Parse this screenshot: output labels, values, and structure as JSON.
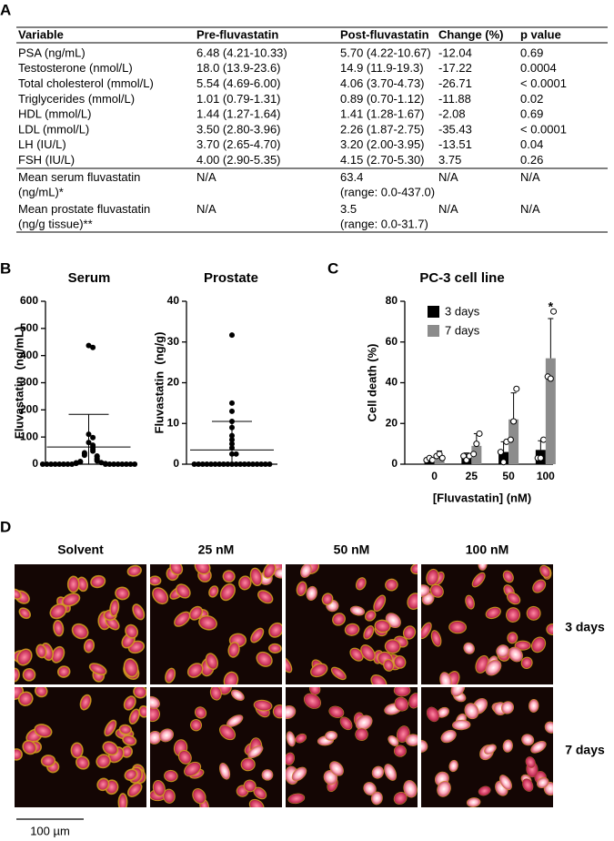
{
  "panel_labels": [
    "A",
    "B",
    "C",
    "D"
  ],
  "table": {
    "header": [
      "Variable",
      "Pre-fluvastatin",
      "Post-fluvastatin",
      "Change (%)",
      "p value"
    ],
    "rows": [
      [
        "PSA (ng/mL)",
        "6.48 (4.21-10.33)",
        "5.70 (4.22-10.67)",
        "-12.04",
        "0.69"
      ],
      [
        "Testosterone (nmol/L)",
        "18.0 (13.9-23.6)",
        "14.9 (11.9-19.3)",
        "-17.22",
        "0.0004"
      ],
      [
        "Total cholesterol (mmol/L)",
        "5.54 (4.69-6.00)",
        "4.06 (3.70-4.73)",
        "-26.71",
        "< 0.0001"
      ],
      [
        "Triglycerides (mmol/L)",
        "1.01 (0.79-1.31)",
        "0.89 (0.70-1.12)",
        "-11.88",
        "0.02"
      ],
      [
        "HDL (mmol/L)",
        "1.44 (1.27-1.64)",
        "1.41 (1.28-1.67)",
        "-2.08",
        "0.69"
      ],
      [
        "LDL (mmol/L)",
        "3.50 (2.80-3.96)",
        "2.26 (1.87-2.75)",
        "-35.43",
        "< 0.0001"
      ],
      [
        "LH (IU/L)",
        "3.70 (2.65-4.70)",
        "3.20 (2.00-3.95)",
        "-13.51",
        "0.04"
      ],
      [
        "FSH (IU/L)",
        "4.00 (2.90-5.35)",
        "4.15 (2.70-5.30)",
        "3.75",
        "0.26"
      ],
      [
        [
          "Mean serum fluvastatin",
          "(ng/mL)*"
        ],
        "N/A",
        [
          "63.4",
          "(range: 0.0-437.0)"
        ],
        "N/A",
        "N/A"
      ],
      [
        [
          "Mean prostate fluvastatin",
          "(ng/g tissue)**"
        ],
        "N/A",
        [
          "3.5",
          "(range: 0.0-31.7)"
        ],
        "N/A",
        "N/A"
      ]
    ]
  },
  "chart_data": [
    {
      "type": "dot",
      "title": "Serum",
      "y_label": "Fluvastatin  (ng/mL)",
      "ylim": [
        0,
        600
      ],
      "yticks": [
        0,
        100,
        200,
        300,
        400,
        500,
        600
      ],
      "color": "#000000",
      "values": [
        437,
        430,
        110,
        98,
        80,
        70,
        62,
        55,
        48,
        42,
        38,
        33,
        30,
        28,
        22,
        18,
        15,
        12,
        10,
        8,
        6,
        5,
        3,
        2,
        0,
        0,
        0,
        0,
        0,
        0,
        0,
        0,
        0,
        0,
        0,
        0,
        0,
        0,
        0,
        0
      ],
      "mean": 63.4,
      "sd": 120
    },
    {
      "type": "dot",
      "title": "Prostate",
      "y_label": "Fluvastatin  (ng/g)",
      "ylim": [
        0,
        40
      ],
      "yticks": [
        0,
        10,
        20,
        30,
        40
      ],
      "color": "#000000",
      "values": [
        31.7,
        15,
        13,
        10.5,
        9,
        7,
        6,
        5,
        4,
        2.5,
        2.5,
        0,
        0,
        0,
        0,
        0,
        0,
        0,
        0,
        0,
        0,
        0,
        0,
        0,
        0,
        0,
        0,
        0,
        0,
        0
      ],
      "mean": 3.5,
      "sd": 7
    },
    {
      "type": "bar",
      "title": "PC-3 cell line",
      "x_label": "[Fluvastatin] (nM)",
      "y_label": "Cell death (%)",
      "categories": [
        "0",
        "25",
        "50",
        "100"
      ],
      "ylim": [
        0,
        80
      ],
      "yticks": [
        0,
        20,
        40,
        60,
        80
      ],
      "legend": "upper left",
      "annotation": "*",
      "series": [
        {
          "name": "3 days",
          "color": "#000000",
          "values": [
            2.5,
            3.5,
            6,
            7
          ],
          "errors": [
            1,
            2,
            5,
            4.5
          ],
          "points": [
            [
              2,
              3,
              2
            ],
            [
              4,
              2,
              4
            ],
            [
              6,
              1,
              11
            ],
            [
              3,
              3,
              12
            ]
          ]
        },
        {
          "name": "7 days",
          "color": "#8c8c8c",
          "values": [
            4.5,
            9,
            22,
            52
          ],
          "errors": [
            2,
            6,
            13,
            19.5
          ],
          "points": [
            [
              4,
              5,
              3
            ],
            [
              5,
              10,
              15
            ],
            [
              12,
              21,
              37
            ],
            [
              43,
              42,
              75
            ]
          ]
        }
      ]
    }
  ],
  "panel_d": {
    "columns": [
      "Solvent",
      "25 nM",
      "50 nM",
      "100 nM"
    ],
    "rows": [
      "3 days",
      "7 days"
    ],
    "scale_bar": "100 µm"
  }
}
